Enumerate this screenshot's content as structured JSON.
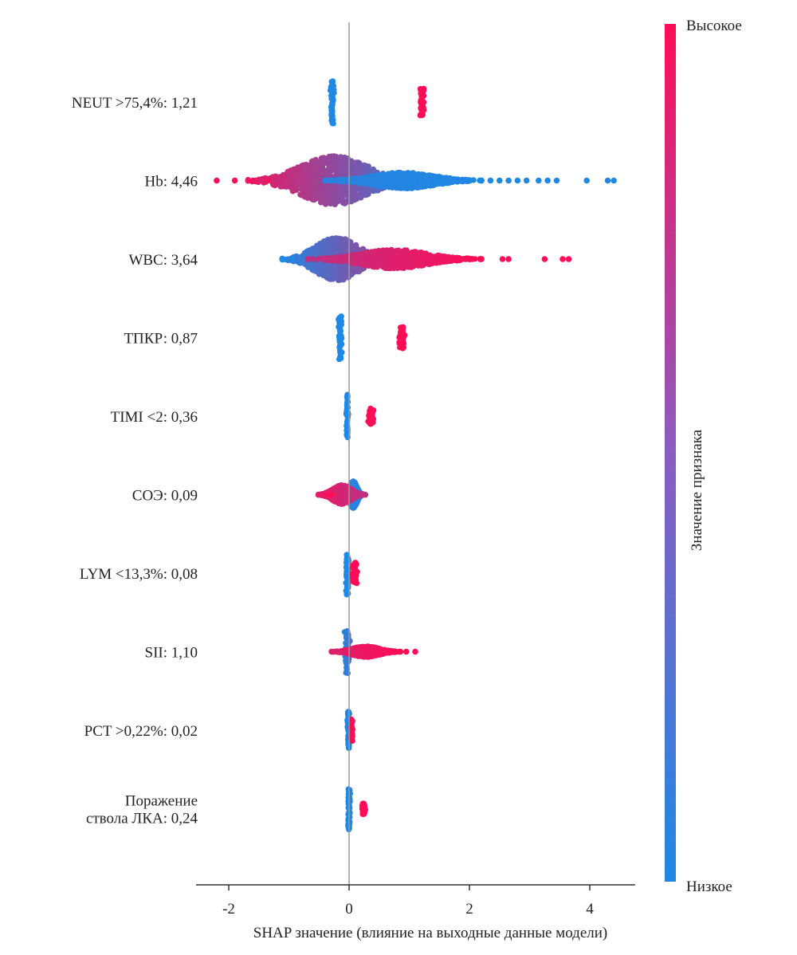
{
  "chart_data": {
    "type": "scatter",
    "subtype": "shap-beeswarm",
    "xlabel": "SHAP значение (влияние на выходные данные модели)",
    "x_ticks": [
      -2,
      0,
      2,
      4
    ],
    "xlim": [
      -2.5,
      4.8
    ],
    "colorbar": {
      "title": "Значение признака",
      "high_label": "Высокое",
      "low_label": "Низкое",
      "high_color": "#ff0d57",
      "low_color": "#1e88e5"
    },
    "features": [
      {
        "label_lines": [
          "NEUT >75,4%: 1,21"
        ],
        "clusters": [
          {
            "x": -0.28,
            "spread": 0.02,
            "height": 0.8,
            "from": 0,
            "to": 0
          },
          {
            "x": 1.21,
            "spread": 0.03,
            "height": 0.5,
            "from": 1,
            "to": 1
          }
        ]
      },
      {
        "label_lines": [
          "Hb: 4,46"
        ],
        "clusters": [
          {
            "x": -0.25,
            "spread": 0.55,
            "height": 0.9,
            "from": 0.92,
            "to": 0.08
          },
          {
            "x": 0.9,
            "spread": 0.5,
            "height": 0.3,
            "from": 0.05,
            "to": 0
          }
        ],
        "outliers": [
          {
            "x": -2.2,
            "v": 1
          },
          {
            "x": -1.9,
            "v": 1
          },
          {
            "x": -1.6,
            "v": 0.95
          },
          {
            "x": -1.35,
            "v": 0.95
          },
          {
            "x": 2.35,
            "v": 0
          },
          {
            "x": 2.5,
            "v": 0
          },
          {
            "x": 2.65,
            "v": 0
          },
          {
            "x": 2.8,
            "v": 0
          },
          {
            "x": 2.95,
            "v": 0
          },
          {
            "x": 3.15,
            "v": 0
          },
          {
            "x": 3.3,
            "v": 0
          },
          {
            "x": 3.45,
            "v": 0
          },
          {
            "x": 3.95,
            "v": 0
          },
          {
            "x": 4.3,
            "v": 0
          },
          {
            "x": 4.4,
            "v": 0
          }
        ]
      },
      {
        "label_lines": [
          "WBC: 3,64"
        ],
        "clusters": [
          {
            "x": -0.2,
            "spread": 0.35,
            "height": 0.8,
            "from": 0.02,
            "to": 0.6
          },
          {
            "x": 0.75,
            "spread": 0.55,
            "height": 0.35,
            "from": 0.7,
            "to": 1
          }
        ],
        "outliers": [
          {
            "x": -1.1,
            "v": 0
          },
          {
            "x": -0.95,
            "v": 0
          },
          {
            "x": 2.05,
            "v": 1
          },
          {
            "x": 2.2,
            "v": 1
          },
          {
            "x": 2.55,
            "v": 1
          },
          {
            "x": 2.65,
            "v": 1
          },
          {
            "x": 3.25,
            "v": 1
          },
          {
            "x": 3.55,
            "v": 1
          },
          {
            "x": 3.65,
            "v": 1
          }
        ]
      },
      {
        "label_lines": [
          "ТПКР: 0,87"
        ],
        "clusters": [
          {
            "x": -0.15,
            "spread": 0.02,
            "height": 0.8,
            "from": 0,
            "to": 0
          },
          {
            "x": 0.88,
            "spread": 0.03,
            "height": 0.4,
            "from": 1,
            "to": 1
          }
        ]
      },
      {
        "label_lines": [
          "TIMI <2: 0,36"
        ],
        "clusters": [
          {
            "x": -0.03,
            "spread": 0.015,
            "height": 0.8,
            "from": 0,
            "to": 0
          },
          {
            "x": 0.36,
            "spread": 0.03,
            "height": 0.3,
            "from": 1,
            "to": 1
          }
        ]
      },
      {
        "label_lines": [
          "СОЭ: 0,09"
        ],
        "clusters": [
          {
            "x": 0.07,
            "spread": 0.06,
            "height": 0.5,
            "from": 0.1,
            "to": 0
          },
          {
            "x": -0.12,
            "spread": 0.15,
            "height": 0.35,
            "from": 0.9,
            "to": 0.7
          }
        ],
        "outliers": [
          {
            "x": -0.35,
            "v": 1
          },
          {
            "x": -0.3,
            "v": 1
          }
        ]
      },
      {
        "label_lines": [
          "LYM <13,3%: 0,08"
        ],
        "clusters": [
          {
            "x": -0.03,
            "spread": 0.015,
            "height": 0.8,
            "from": 0,
            "to": 0
          },
          {
            "x": 0.09,
            "spread": 0.03,
            "height": 0.4,
            "from": 1,
            "to": 1
          }
        ]
      },
      {
        "label_lines": [
          "SII: 1,10"
        ],
        "clusters": [
          {
            "x": -0.03,
            "spread": 0.03,
            "height": 0.8,
            "from": 0,
            "to": 0.2
          },
          {
            "x": 0.28,
            "spread": 0.22,
            "height": 0.2,
            "from": 0.85,
            "to": 1
          }
        ],
        "outliers": [
          {
            "x": 0.7,
            "v": 1
          },
          {
            "x": 0.95,
            "v": 1
          },
          {
            "x": 1.1,
            "v": 1
          }
        ]
      },
      {
        "label_lines": [
          "PCT >0,22%: 0,02"
        ],
        "clusters": [
          {
            "x": -0.01,
            "spread": 0.015,
            "height": 0.7,
            "from": 0,
            "to": 0
          },
          {
            "x": 0.04,
            "spread": 0.015,
            "height": 0.4,
            "from": 1,
            "to": 1
          }
        ]
      },
      {
        "label_lines": [
          "Поражение",
          "ствола ЛКА: 0,24"
        ],
        "clusters": [
          {
            "x": 0.0,
            "spread": 0.015,
            "height": 0.8,
            "from": 0,
            "to": 0
          },
          {
            "x": 0.24,
            "spread": 0.02,
            "height": 0.2,
            "from": 1,
            "to": 1
          }
        ]
      }
    ]
  }
}
